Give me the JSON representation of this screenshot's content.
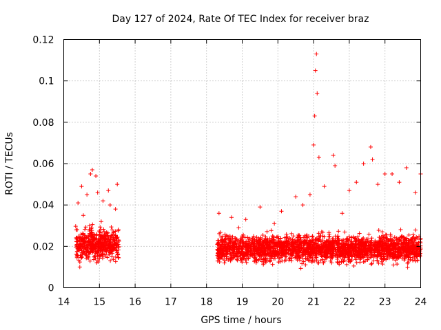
{
  "chart_data": {
    "type": "scatter",
    "title": "Day 127 of 2024, Rate Of TEC Index for receiver braz",
    "xlabel": "GPS time / hours",
    "ylabel": "ROTI / TECUs",
    "xlim": [
      14,
      24
    ],
    "ylim": [
      0,
      0.12
    ],
    "xticks": [
      "14",
      "15",
      "16",
      "17",
      "18",
      "19",
      "20",
      "21",
      "22",
      "23",
      "24"
    ],
    "yticks": [
      "0",
      "0.02",
      "0.04",
      "0.06",
      "0.08",
      "0.1",
      "0.12"
    ],
    "grid": true,
    "marker": "plus",
    "color": "#ff0000",
    "segments": [
      {
        "x_start": 14.33,
        "x_end": 15.55,
        "y_center": 0.021,
        "y_spread": 0.012
      },
      {
        "x_start": 18.3,
        "x_end": 24.0,
        "y_center": 0.019,
        "y_spread": 0.011
      }
    ],
    "series": [
      {
        "x": [
          14.35,
          14.4,
          14.45,
          14.5,
          14.55,
          14.6,
          14.65,
          14.72,
          14.75,
          14.8,
          14.85,
          14.9,
          14.95,
          15.0,
          15.05,
          15.1,
          15.15,
          15.2,
          15.25,
          15.3,
          15.35,
          15.4,
          15.45,
          15.5,
          18.35,
          18.5,
          18.7,
          18.9,
          19.1,
          19.3,
          19.5,
          19.7,
          19.9,
          20.1,
          20.3,
          20.5,
          20.7,
          20.9,
          21.0,
          21.03,
          21.05,
          21.08,
          21.1,
          21.15,
          21.3,
          21.55,
          21.6,
          21.8,
          22.0,
          22.2,
          22.4,
          22.6,
          22.65,
          22.8,
          23.0,
          23.2,
          23.4,
          23.6,
          23.85,
          24.0
        ],
        "y": [
          0.028,
          0.041,
          0.01,
          0.049,
          0.035,
          0.022,
          0.045,
          0.03,
          0.055,
          0.057,
          0.02,
          0.054,
          0.046,
          0.014,
          0.032,
          0.042,
          0.025,
          0.019,
          0.047,
          0.04,
          0.015,
          0.027,
          0.038,
          0.05,
          0.036,
          0.012,
          0.034,
          0.029,
          0.033,
          0.024,
          0.039,
          0.014,
          0.031,
          0.037,
          0.021,
          0.044,
          0.04,
          0.045,
          0.069,
          0.083,
          0.105,
          0.113,
          0.094,
          0.063,
          0.049,
          0.064,
          0.059,
          0.036,
          0.047,
          0.051,
          0.06,
          0.068,
          0.062,
          0.05,
          0.055,
          0.055,
          0.051,
          0.058,
          0.046,
          0.055
        ]
      }
    ]
  }
}
